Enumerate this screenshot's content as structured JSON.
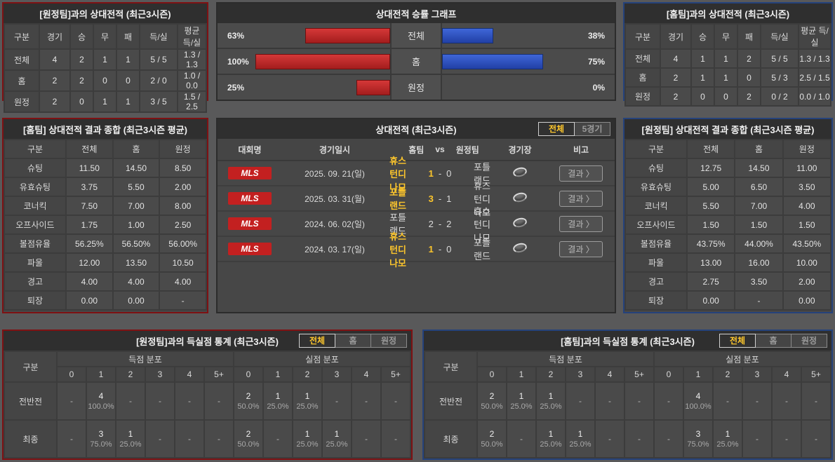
{
  "colors": {
    "home_accent": "#7e1113",
    "away_accent": "#25427b",
    "bar_red": "#c22a2a",
    "bar_blue": "#2f55c4",
    "highlight_yellow": "#fdc62c",
    "badge_red": "#c32020"
  },
  "top_left": {
    "title": "[원정팀]과의 상대전적 (최근3시즌)",
    "headers": [
      "구분",
      "경기",
      "승",
      "무",
      "패",
      "득/실",
      "평균 득/실"
    ],
    "rows": [
      [
        "전체",
        "4",
        "2",
        "1",
        "1",
        "5 / 5",
        "1.3 / 1.3"
      ],
      [
        "홈",
        "2",
        "2",
        "0",
        "0",
        "2 / 0",
        "1.0 / 0.0"
      ],
      [
        "원정",
        "2",
        "0",
        "1",
        "1",
        "3 / 5",
        "1.5 / 2.5"
      ]
    ]
  },
  "graph": {
    "title": "상대전적 승률 그래프",
    "rows": [
      {
        "label": "전체",
        "left_pct": "63%",
        "left_val": 63,
        "right_pct": "38%",
        "right_val": 38
      },
      {
        "label": "홈",
        "left_pct": "100%",
        "left_val": 100,
        "right_pct": "75%",
        "right_val": 75
      },
      {
        "label": "원정",
        "left_pct": "25%",
        "left_val": 25,
        "right_pct": "0%",
        "right_val": 0
      }
    ]
  },
  "top_right": {
    "title": "[홈팀]과의 상대전적 (최근3시즌)",
    "headers": [
      "구분",
      "경기",
      "승",
      "무",
      "패",
      "득/실",
      "평균 득/실"
    ],
    "rows": [
      [
        "전체",
        "4",
        "1",
        "1",
        "2",
        "5 / 5",
        "1.3 / 1.3"
      ],
      [
        "홈",
        "2",
        "1",
        "1",
        "0",
        "5 / 3",
        "2.5 / 1.5"
      ],
      [
        "원정",
        "2",
        "0",
        "0",
        "2",
        "0 / 2",
        "0.0 / 1.0"
      ]
    ]
  },
  "mid_left": {
    "title": "[홈팀] 상대전적 결과 종합 (최근3시즌 평균)",
    "headers": [
      "구분",
      "전체",
      "홈",
      "원정"
    ],
    "rows": [
      [
        "슈팅",
        "11.50",
        "14.50",
        "8.50"
      ],
      [
        "유효슈팅",
        "3.75",
        "5.50",
        "2.00"
      ],
      [
        "코너킥",
        "7.50",
        "7.00",
        "8.00"
      ],
      [
        "오프사이드",
        "1.75",
        "1.00",
        "2.50"
      ],
      [
        "볼점유율",
        "56.25%",
        "56.50%",
        "56.00%"
      ],
      [
        "파울",
        "12.00",
        "13.50",
        "10.50"
      ],
      [
        "경고",
        "4.00",
        "4.00",
        "4.00"
      ],
      [
        "퇴장",
        "0.00",
        "0.00",
        "-"
      ]
    ]
  },
  "mid_center": {
    "title": "상대전적 (최근3시즌)",
    "filters": [
      {
        "label": "전체",
        "active": true
      },
      {
        "label": "5경기",
        "active": false
      }
    ],
    "headers": {
      "league": "대회명",
      "date": "경기일시",
      "home": "홈팀",
      "vs": "vs",
      "away": "원정팀",
      "venue": "경기장",
      "etc": "비고"
    },
    "score_separator": "-",
    "result_label": "결과 〉",
    "matches": [
      {
        "league": "MLS",
        "date": "2025. 09. 21(일)",
        "home": "휴스턴디나모",
        "score_home": "1",
        "score_away": "0",
        "away": "포틀랜드",
        "home_win": true,
        "away_win": false
      },
      {
        "league": "MLS",
        "date": "2025. 03. 31(월)",
        "home": "포틀랜드",
        "score_home": "3",
        "score_away": "1",
        "away": "휴스턴디나모",
        "home_win": true,
        "away_win": false
      },
      {
        "league": "MLS",
        "date": "2024. 06. 02(일)",
        "home": "포틀랜드",
        "score_home": "2",
        "score_away": "2",
        "away": "휴스턴디나모",
        "home_win": false,
        "away_win": false
      },
      {
        "league": "MLS",
        "date": "2024. 03. 17(일)",
        "home": "휴스턴디나모",
        "score_home": "1",
        "score_away": "0",
        "away": "포틀랜드",
        "home_win": true,
        "away_win": false
      }
    ]
  },
  "mid_right": {
    "title": "[원정팀] 상대전적 결과 종합 (최근3시즌 평균)",
    "headers": [
      "구분",
      "전체",
      "홈",
      "원정"
    ],
    "rows": [
      [
        "슈팅",
        "12.75",
        "14.50",
        "11.00"
      ],
      [
        "유효슈팅",
        "5.00",
        "6.50",
        "3.50"
      ],
      [
        "코너킥",
        "5.50",
        "7.00",
        "4.00"
      ],
      [
        "오프사이드",
        "1.50",
        "1.50",
        "1.50"
      ],
      [
        "볼점유율",
        "43.75%",
        "44.00%",
        "43.50%"
      ],
      [
        "파울",
        "13.00",
        "16.00",
        "10.00"
      ],
      [
        "경고",
        "2.75",
        "3.50",
        "2.00"
      ],
      [
        "퇴장",
        "0.00",
        "-",
        "0.00"
      ]
    ]
  },
  "bottom_left": {
    "title": "[원정팀]과의 득실점 통계 (최근3시즌)",
    "filters": [
      "전체",
      "홈",
      "원정"
    ],
    "active_filter": "전체",
    "col_label": "구분",
    "group_scored": "득점 분포",
    "group_conceded": "실점 분포",
    "bins": [
      "0",
      "1",
      "2",
      "3",
      "4",
      "5+"
    ],
    "rows": [
      {
        "label": "전반전",
        "scored": [
          null,
          {
            "n": "4",
            "p": "100.0%"
          },
          null,
          null,
          null,
          null
        ],
        "conceded": [
          {
            "n": "2",
            "p": "50.0%"
          },
          {
            "n": "1",
            "p": "25.0%"
          },
          {
            "n": "1",
            "p": "25.0%"
          },
          null,
          null,
          null
        ]
      },
      {
        "label": "최종",
        "scored": [
          null,
          {
            "n": "3",
            "p": "75.0%"
          },
          {
            "n": "1",
            "p": "25.0%"
          },
          null,
          null,
          null
        ],
        "conceded": [
          {
            "n": "2",
            "p": "50.0%"
          },
          null,
          {
            "n": "1",
            "p": "25.0%"
          },
          {
            "n": "1",
            "p": "25.0%"
          },
          null,
          null
        ]
      }
    ]
  },
  "bottom_right": {
    "title": "[홈팀]과의 득실점 통계 (최근3시즌)",
    "filters": [
      "전체",
      "홈",
      "원정"
    ],
    "active_filter": "전체",
    "col_label": "구분",
    "group_scored": "득점 분포",
    "group_conceded": "실점 분포",
    "bins": [
      "0",
      "1",
      "2",
      "3",
      "4",
      "5+"
    ],
    "rows": [
      {
        "label": "전반전",
        "scored": [
          {
            "n": "2",
            "p": "50.0%"
          },
          {
            "n": "1",
            "p": "25.0%"
          },
          {
            "n": "1",
            "p": "25.0%"
          },
          null,
          null,
          null
        ],
        "conceded": [
          null,
          {
            "n": "4",
            "p": "100.0%"
          },
          null,
          null,
          null,
          null
        ]
      },
      {
        "label": "최종",
        "scored": [
          {
            "n": "2",
            "p": "50.0%"
          },
          null,
          {
            "n": "1",
            "p": "25.0%"
          },
          {
            "n": "1",
            "p": "25.0%"
          },
          null,
          null
        ],
        "conceded": [
          null,
          {
            "n": "3",
            "p": "75.0%"
          },
          {
            "n": "1",
            "p": "25.0%"
          },
          null,
          null,
          null
        ]
      }
    ]
  }
}
